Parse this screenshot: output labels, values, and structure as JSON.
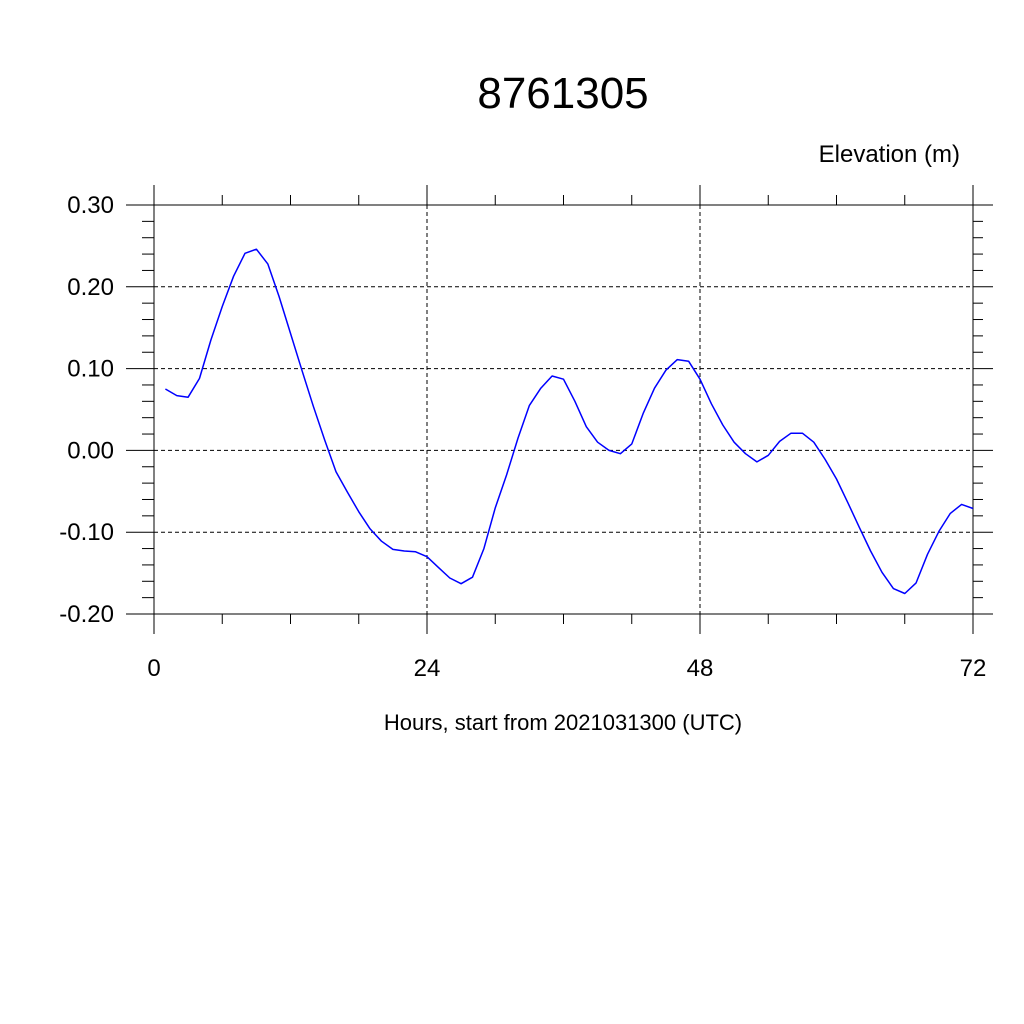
{
  "chart_data": {
    "type": "line",
    "title": "8761305",
    "ylabel": "Elevation (m)",
    "xlabel": "Hours, start from 2021031300 (UTC)",
    "xlim": [
      0,
      72
    ],
    "ylim": [
      -0.2,
      0.3
    ],
    "x_ticks": [
      0,
      24,
      48,
      72
    ],
    "x_tick_labels": [
      "0",
      "24",
      "48",
      "72"
    ],
    "y_ticks": [
      -0.2,
      -0.1,
      0.0,
      0.1,
      0.2,
      0.3
    ],
    "y_tick_labels": [
      "-0.20",
      "-0.10",
      "0.00",
      "0.10",
      "0.20",
      "0.30"
    ],
    "grid": "dashed",
    "series": [
      {
        "color": "#0000ff",
        "x": [
          1,
          2,
          3,
          4,
          5,
          6,
          7,
          8,
          9,
          10,
          11,
          12,
          13,
          14,
          15,
          16,
          17,
          18,
          19,
          20,
          21,
          22,
          23,
          24,
          25,
          26,
          27,
          28,
          29,
          30,
          31,
          32,
          33,
          34,
          35,
          36,
          37,
          38,
          39,
          40,
          41,
          42,
          43,
          44,
          45,
          46,
          47,
          48,
          49,
          50,
          51,
          52,
          53,
          54,
          55,
          56,
          57,
          58,
          59,
          60,
          61,
          62,
          63,
          64,
          65,
          66,
          67,
          68,
          69,
          70,
          71,
          72
        ],
        "y": [
          0.075,
          0.067,
          0.065,
          0.088,
          0.135,
          0.176,
          0.213,
          0.241,
          0.246,
          0.228,
          0.188,
          0.143,
          0.098,
          0.054,
          0.013,
          -0.026,
          -0.051,
          -0.075,
          -0.096,
          -0.111,
          -0.121,
          -0.123,
          -0.124,
          -0.13,
          -0.143,
          -0.156,
          -0.163,
          -0.155,
          -0.12,
          -0.07,
          -0.03,
          0.015,
          0.055,
          0.076,
          0.091,
          0.087,
          0.06,
          0.029,
          0.01,
          0.0,
          -0.004,
          0.008,
          0.045,
          0.076,
          0.098,
          0.111,
          0.109,
          0.087,
          0.057,
          0.031,
          0.01,
          -0.004,
          -0.014,
          -0.006,
          0.011,
          0.021,
          0.021,
          0.01,
          -0.011,
          -0.035,
          -0.064,
          -0.094,
          -0.123,
          -0.149,
          -0.169,
          -0.175,
          -0.162,
          -0.127,
          -0.099,
          -0.077,
          -0.066,
          -0.071
        ]
      }
    ]
  }
}
